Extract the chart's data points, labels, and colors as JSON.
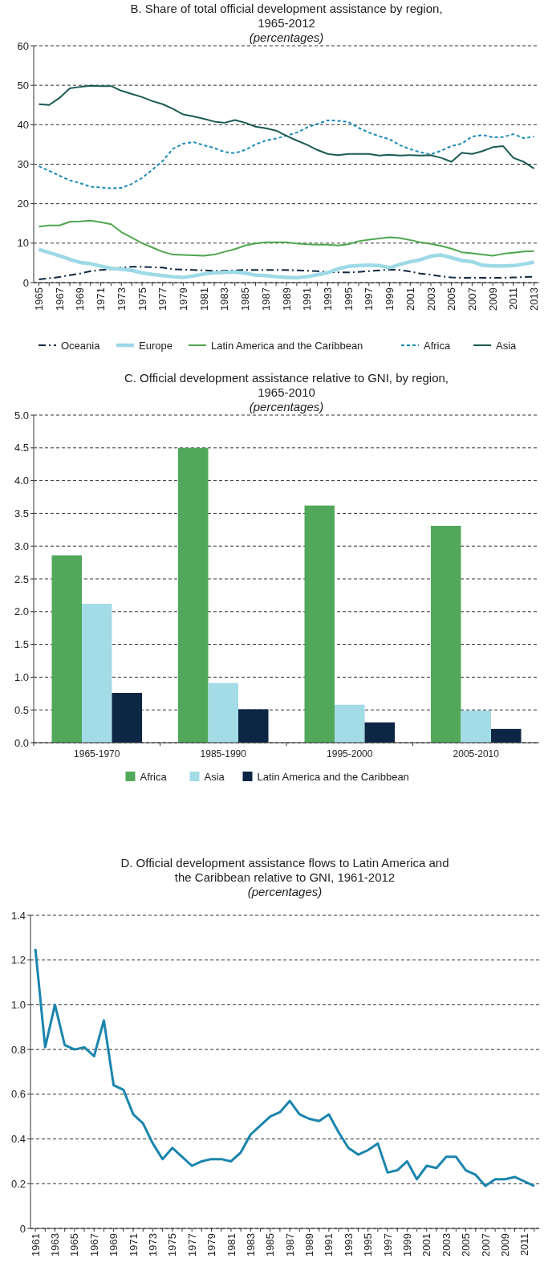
{
  "chart_data": [
    {
      "type": "line",
      "title": "B. Share of total official development assistance by region, 1965-2012",
      "subtitle": "(percentages)",
      "categories": [
        "1965",
        null,
        "1967",
        null,
        "1969",
        null,
        "1971",
        null,
        "1973",
        null,
        "1975",
        null,
        "1977",
        null,
        "1979",
        null,
        "1981",
        null,
        "1983",
        null,
        "1985",
        null,
        "1987",
        null,
        "1989",
        null,
        "1991",
        null,
        "1993",
        null,
        "1995",
        null,
        "1997",
        null,
        "1999",
        null,
        "2001",
        null,
        "2003",
        null,
        "2005",
        null,
        "2007",
        null,
        "2009",
        null,
        "2011",
        null,
        "2013"
      ],
      "ylim": [
        0,
        60
      ],
      "yticks": [
        0,
        10,
        20,
        30,
        40,
        50,
        60
      ],
      "grid": "y",
      "legend": "bottom",
      "series": [
        {
          "name": "Oceania",
          "color": "#0e2841",
          "line_style": "dashed",
          "values": [
            0.8,
            1.1,
            1.4,
            1.9,
            2.3,
            2.9,
            3.2,
            3.4,
            3.8,
            4,
            4,
            3.9,
            3.8,
            3.4,
            3.3,
            3.2,
            3.1,
            3,
            3,
            3.1,
            3.2,
            3.2,
            3.2,
            3.2,
            3.2,
            3.1,
            3,
            2.9,
            2.7,
            2.6,
            2.6,
            2.7,
            2.9,
            3.1,
            3.3,
            3.2,
            2.8,
            2.3,
            2,
            1.6,
            1.3,
            1.2,
            1.2,
            1.2,
            1.2,
            1.2,
            1.3,
            1.4,
            1.5
          ]
        },
        {
          "name": "Europe",
          "color": "#9dd9e6",
          "line_style": "solid",
          "values": [
            8.4,
            7.6,
            6.8,
            5.9,
            5.1,
            4.8,
            4.2,
            3.6,
            3.4,
            3.1,
            2.5,
            2.1,
            1.8,
            1.5,
            1.3,
            1.7,
            2.2,
            2.5,
            2.6,
            2.7,
            2.4,
            1.9,
            1.8,
            1.5,
            1.3,
            1.2,
            1.5,
            2,
            2.5,
            3.5,
            4.1,
            4.3,
            4.4,
            4.3,
            3.8,
            4.6,
            5.3,
            5.8,
            6.7,
            7,
            6.3,
            5.6,
            5.3,
            4.4,
            4.2,
            4.2,
            4.3,
            4.7,
            5.2
          ]
        },
        {
          "name": "Latin America and the Caribbean",
          "color": "#4ea64e",
          "line_style": "solid",
          "values": [
            14.2,
            14.5,
            14.5,
            15.4,
            15.5,
            15.7,
            15.3,
            14.8,
            12.8,
            11.4,
            10,
            8.9,
            7.8,
            7.1,
            7,
            6.9,
            6.8,
            7.1,
            7.8,
            8.5,
            9.4,
            9.9,
            10.2,
            10.2,
            10.2,
            9.9,
            9.7,
            9.6,
            9.6,
            9.4,
            9.7,
            10.5,
            10.9,
            11.2,
            11.5,
            11.3,
            10.8,
            10.2,
            9.8,
            9.3,
            8.6,
            7.7,
            7.4,
            7.1,
            6.8,
            7.3,
            7.6,
            7.9,
            8
          ]
        },
        {
          "name": "Africa",
          "color": "#1a8bb5",
          "line_style": "dotted",
          "values": [
            29.5,
            28.3,
            27.1,
            25.9,
            25.2,
            24.3,
            24.1,
            23.9,
            24,
            25,
            26.5,
            28.6,
            30.8,
            33.9,
            35.2,
            35.6,
            34.8,
            34.1,
            33.1,
            32.8,
            33.6,
            35,
            36,
            36.5,
            37.2,
            38,
            39.3,
            40.2,
            41.1,
            41,
            40.7,
            39.2,
            38,
            37.1,
            36.3,
            34.8,
            33.8,
            33,
            32.5,
            33.4,
            34.6,
            35.2,
            37,
            37.4,
            36.8,
            36.9,
            37.6,
            36.6,
            37
          ]
        },
        {
          "name": "Asia",
          "color": "#1b5a54",
          "line_style": "solid",
          "values": [
            45.2,
            45,
            46.8,
            49.2,
            49.6,
            49.9,
            49.8,
            49.8,
            48.6,
            47.8,
            47,
            46,
            45.2,
            44,
            42.6,
            42.1,
            41.5,
            40.8,
            40.5,
            41.2,
            40.5,
            39.5,
            39.1,
            38.5,
            37.2,
            36,
            34.9,
            33.6,
            32.6,
            32.3,
            32.6,
            32.6,
            32.6,
            32.2,
            32.4,
            32.2,
            32.3,
            32.2,
            32.3,
            31.6,
            30.6,
            32.9,
            32.6,
            33.3,
            34.3,
            34.6,
            31.6,
            30.6,
            28.9
          ]
        }
      ]
    },
    {
      "type": "bar",
      "title": "C. Official development assistance relative to GNI, by region, 1965-2010",
      "subtitle": "(percentages)",
      "categories": [
        "1965-1970",
        "1985-1990",
        "1995-2000",
        "2005-2010"
      ],
      "ylim": [
        0,
        5
      ],
      "yticks": [
        {
          "value": 0,
          "label": "0.0"
        },
        0.5,
        {
          "value": 1,
          "label": "1.0"
        },
        1.5,
        {
          "value": 2,
          "label": "2.0"
        },
        2.5,
        {
          "value": 3,
          "label": "3.0"
        },
        3.5,
        {
          "value": 4,
          "label": "4.0"
        },
        4.5,
        {
          "value": 5,
          "label": "5.0"
        }
      ],
      "grid": "y",
      "legend": "bottom",
      "series": [
        {
          "name": "Africa",
          "color": "#52a85a",
          "values": [
            2.86,
            4.5,
            3.62,
            3.31
          ]
        },
        {
          "name": "Asia",
          "color": "#a3dbe6",
          "values": [
            2.12,
            0.91,
            0.58,
            0.49
          ]
        },
        {
          "name": "Latin America and the Caribbean",
          "color": "#0c2644",
          "values": [
            0.76,
            0.51,
            0.31,
            0.21
          ]
        }
      ]
    },
    {
      "type": "line",
      "title": "D. Official development assistance flows to Latin America and the Caribbean relative to GNI, 1961-2012",
      "subtitle": "(percentages)",
      "categories": [
        "1961",
        null,
        "1963",
        null,
        "1965",
        null,
        "1967",
        null,
        "1969",
        null,
        "1971",
        null,
        "1973",
        null,
        "1975",
        null,
        "1977",
        null,
        "1979",
        null,
        "1981",
        null,
        "1983",
        null,
        "1985",
        null,
        "1987",
        null,
        "1989",
        null,
        "1991",
        null,
        "1993",
        null,
        "1995",
        null,
        "1997",
        null,
        "1999",
        null,
        "2001",
        null,
        "2003",
        null,
        "2005",
        null,
        "2007",
        null,
        "2009",
        null,
        "2011",
        null
      ],
      "ylim": [
        0,
        1.4
      ],
      "yticks": [
        0,
        0.2,
        0.4,
        0.6,
        0.8,
        {
          "value": 1,
          "label": "1.0"
        },
        1.2,
        1.4
      ],
      "grid": "y",
      "series": [
        {
          "color": "#1a85ad",
          "values": [
            1.25,
            0.81,
            1.0,
            0.82,
            0.8,
            0.81,
            0.77,
            0.93,
            0.64,
            0.62,
            0.51,
            0.47,
            0.38,
            0.31,
            0.36,
            0.32,
            0.28,
            0.3,
            0.31,
            0.31,
            0.3,
            0.34,
            0.42,
            0.46,
            0.5,
            0.52,
            0.57,
            0.51,
            0.49,
            0.48,
            0.51,
            0.43,
            0.36,
            0.33,
            0.35,
            0.38,
            0.25,
            0.26,
            0.3,
            0.22,
            0.28,
            0.27,
            0.32,
            0.32,
            0.26,
            0.24,
            0.19,
            0.22,
            0.22,
            0.23,
            0.21,
            0.19
          ]
        }
      ]
    }
  ]
}
